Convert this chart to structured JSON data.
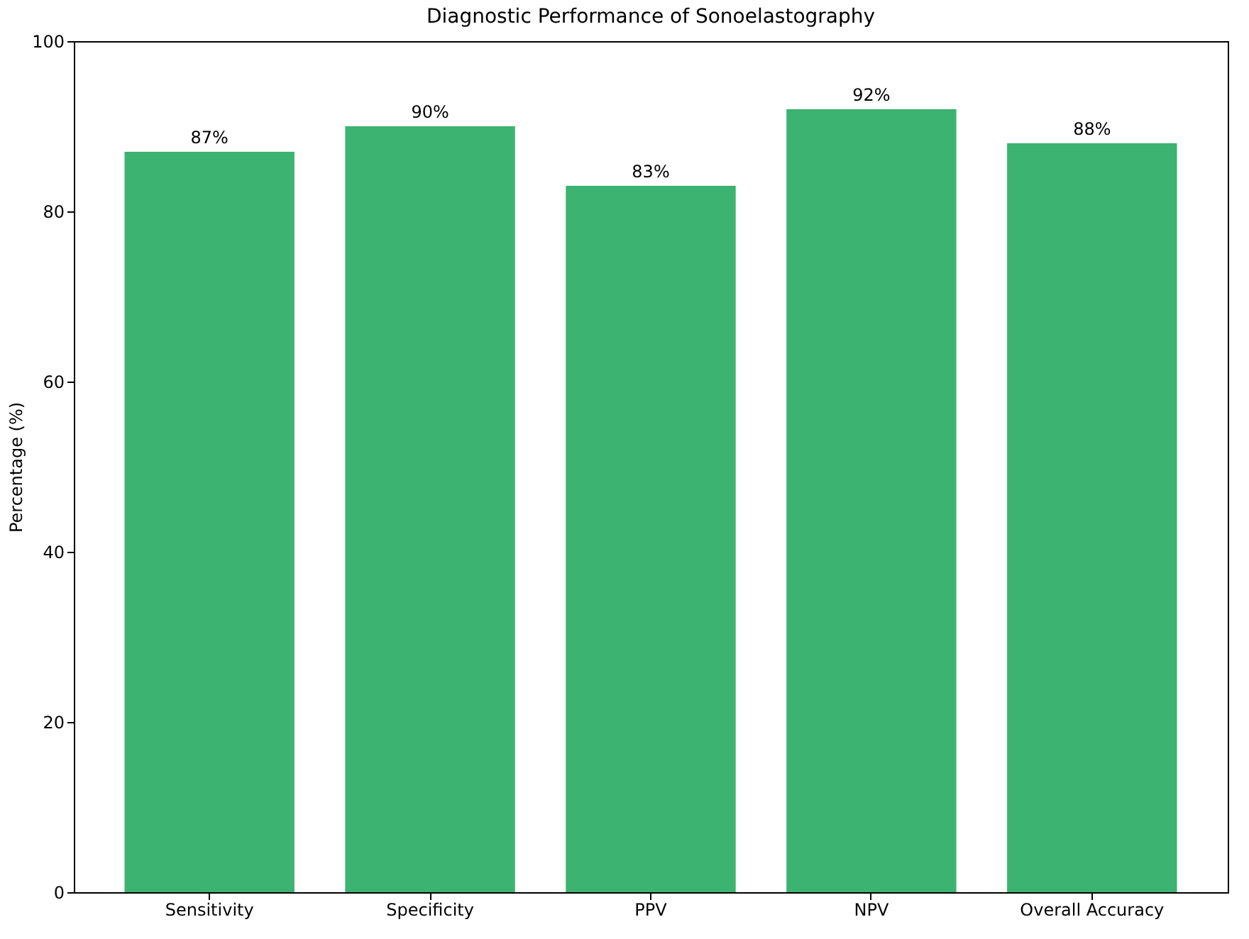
{
  "chart_data": {
    "type": "bar",
    "title": "Diagnostic Performance of Sonoelastography",
    "ylabel": "Percentage (%)",
    "categories": [
      "Sensitivity",
      "Specificity",
      "PPV",
      "NPV",
      "Overall Accuracy"
    ],
    "values": [
      87,
      90,
      83,
      92,
      88
    ],
    "value_labels": [
      "87%",
      "90%",
      "83%",
      "92%",
      "88%"
    ],
    "color": "#3cb371",
    "ylim": [
      0,
      100
    ],
    "yticks": [
      0,
      20,
      40,
      60,
      80,
      100
    ],
    "grid": false
  }
}
